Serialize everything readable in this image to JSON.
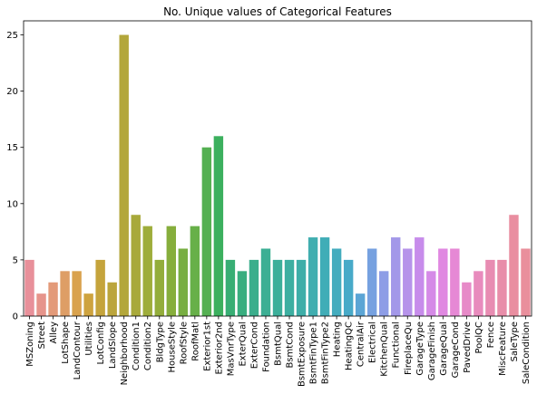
{
  "chart_data": {
    "type": "bar",
    "title": "No. Unique values of Categorical Features",
    "xlabel": "",
    "ylabel": "",
    "ylim": [
      0,
      26.25
    ],
    "yticks": [
      0,
      5,
      10,
      15,
      20,
      25
    ],
    "grid": false,
    "legend": "none",
    "categories": [
      "MSZoning",
      "Street",
      "Alley",
      "LotShape",
      "LandContour",
      "Utilities",
      "LotConfig",
      "LandSlope",
      "Neighborhood",
      "Condition1",
      "Condition2",
      "BldgType",
      "HouseStyle",
      "RoofStyle",
      "RoofMatl",
      "Exterior1st",
      "Exterior2nd",
      "MasVnrType",
      "ExterQual",
      "ExterCond",
      "Foundation",
      "BsmtQual",
      "BsmtCond",
      "BsmtExposure",
      "BsmtFinType1",
      "BsmtFinType2",
      "Heating",
      "HeatingQC",
      "CentralAir",
      "Electrical",
      "KitchenQual",
      "Functional",
      "FireplaceQu",
      "GarageType",
      "GarageFinish",
      "GarageQual",
      "GarageCond",
      "PavedDrive",
      "PoolQC",
      "Fence",
      "MiscFeature",
      "SaleType",
      "SaleCondition"
    ],
    "values": [
      5,
      2,
      3,
      4,
      4,
      2,
      5,
      3,
      25,
      9,
      8,
      5,
      8,
      6,
      8,
      15,
      16,
      5,
      4,
      5,
      6,
      5,
      5,
      5,
      7,
      7,
      6,
      5,
      2,
      6,
      4,
      7,
      6,
      7,
      4,
      6,
      6,
      3,
      4,
      5,
      5,
      9,
      6
    ],
    "colors": [
      "#e8909a",
      "#e6948b",
      "#e39a79",
      "#de9e66",
      "#d9a24d",
      "#cea33f",
      "#c5a43c",
      "#bba53c",
      "#b3a73b",
      "#a8a93a",
      "#9ead3b",
      "#93ad3b",
      "#86ae3c",
      "#77ae41",
      "#67b049",
      "#54b052",
      "#3cb05e",
      "#38ae74",
      "#39ae7f",
      "#3bae8c",
      "#3caf94",
      "#3caf9a",
      "#3dafa1",
      "#3eaea8",
      "#40aeb0",
      "#40adb7",
      "#43acbe",
      "#48aac8",
      "#5ba5d5",
      "#76a1e0",
      "#8d9de6",
      "#a398e9",
      "#b693ea",
      "#c78ceb",
      "#d58ae7",
      "#e088e1",
      "#e688d5",
      "#e78ac8",
      "#e88bbd",
      "#e88cb2",
      "#e88da9",
      "#e98ea0",
      "#e98f9c"
    ]
  }
}
